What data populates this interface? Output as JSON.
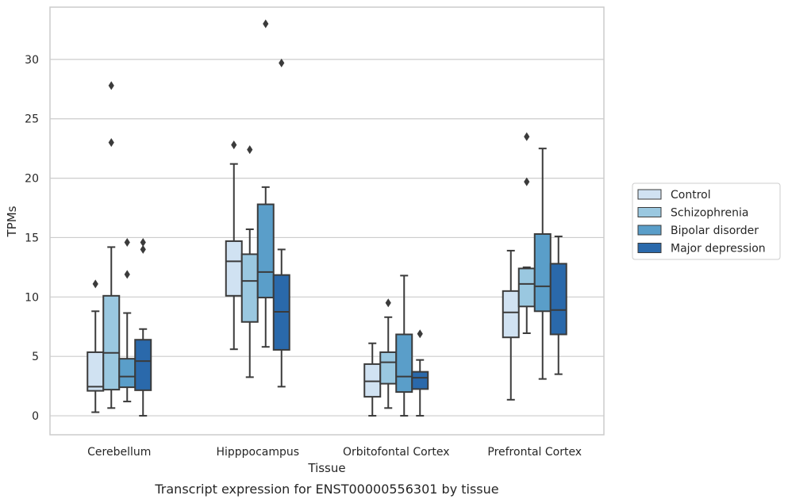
{
  "chart_data": {
    "type": "box",
    "categories": [
      "Cerebellum",
      "Hipppocampus",
      "Orbitofontal Cortex",
      "Prefrontal Cortex"
    ],
    "xlabel": "Tissue",
    "ylabel": "TPMs",
    "caption": "Transcript expression for ENST00000556301 by tissue",
    "ylim": [
      -1.6,
      34.4
    ],
    "yticks": [
      0,
      5,
      10,
      15,
      20,
      25,
      30
    ],
    "grid": true,
    "legend_position": "right",
    "series": [
      {
        "name": "Control",
        "color": "#d0e2f2",
        "boxes": [
          {
            "min": 0.3,
            "q1": 2.1,
            "median": 2.45,
            "q3": 5.35,
            "max": 8.8,
            "outliers": [
              11.1
            ]
          },
          {
            "min": 5.6,
            "q1": 10.1,
            "median": 13.0,
            "q3": 14.7,
            "max": 21.2,
            "outliers": [
              22.8
            ]
          },
          {
            "min": 0.0,
            "q1": 1.6,
            "median": 2.9,
            "q3": 4.35,
            "max": 6.1,
            "outliers": []
          },
          {
            "min": 1.35,
            "q1": 6.6,
            "median": 8.7,
            "q3": 10.5,
            "max": 13.9,
            "outliers": []
          }
        ]
      },
      {
        "name": "Schizophrenia",
        "color": "#9ac8e0",
        "boxes": [
          {
            "min": 0.65,
            "q1": 2.2,
            "median": 5.3,
            "q3": 10.1,
            "max": 14.2,
            "outliers": [
              23.0,
              27.8
            ]
          },
          {
            "min": 3.25,
            "q1": 7.9,
            "median": 11.35,
            "q3": 13.6,
            "max": 15.7,
            "outliers": [
              22.4
            ]
          },
          {
            "min": 0.65,
            "q1": 2.7,
            "median": 4.5,
            "q3": 5.35,
            "max": 8.3,
            "outliers": [
              9.5
            ]
          },
          {
            "min": 6.95,
            "q1": 9.2,
            "median": 11.1,
            "q3": 12.4,
            "max": 12.5,
            "outliers": [
              19.7,
              23.5
            ]
          }
        ]
      },
      {
        "name": "Bipolar disorder",
        "color": "#5a9ec9",
        "boxes": [
          {
            "min": 1.2,
            "q1": 2.4,
            "median": 3.3,
            "q3": 4.8,
            "max": 8.65,
            "outliers": [
              11.9,
              14.6
            ]
          },
          {
            "min": 5.8,
            "q1": 9.95,
            "median": 12.1,
            "q3": 17.8,
            "max": 19.25,
            "outliers": [
              33.0
            ]
          },
          {
            "min": 0.0,
            "q1": 2.0,
            "median": 3.3,
            "q3": 6.85,
            "max": 11.8,
            "outliers": []
          },
          {
            "min": 3.1,
            "q1": 8.8,
            "median": 10.9,
            "q3": 15.3,
            "max": 22.5,
            "outliers": []
          }
        ]
      },
      {
        "name": "Major depression",
        "color": "#2a69ab",
        "boxes": [
          {
            "min": 0.0,
            "q1": 2.15,
            "median": 4.6,
            "q3": 6.4,
            "max": 7.3,
            "outliers": [
              14.0,
              14.6
            ]
          },
          {
            "min": 2.45,
            "q1": 5.55,
            "median": 8.75,
            "q3": 11.85,
            "max": 14.0,
            "outliers": [
              29.7
            ]
          },
          {
            "min": 0.0,
            "q1": 2.25,
            "median": 3.2,
            "q3": 3.7,
            "max": 4.7,
            "outliers": [
              6.9
            ]
          },
          {
            "min": 3.5,
            "q1": 6.85,
            "median": 8.9,
            "q3": 12.8,
            "max": 15.1,
            "outliers": []
          }
        ]
      }
    ]
  }
}
